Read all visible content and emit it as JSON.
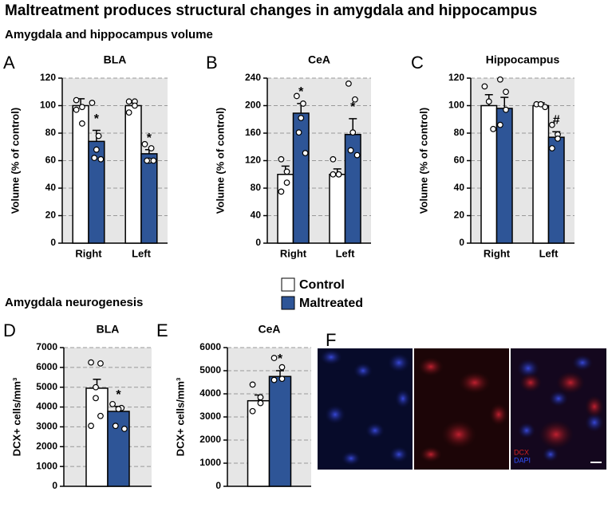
{
  "title": "Maltreatment produces structural changes in amygdala and hippocampus",
  "section_volume": "Amygdala and hippocampus volume",
  "section_neurogenesis": "Amygdala neurogenesis",
  "chart_data": [
    {
      "type": "bar",
      "panel": "A",
      "title": "BLA",
      "ylabel": "Volume (% of control)",
      "categories": [
        "Right",
        "Left"
      ],
      "ylim": [
        0,
        120
      ],
      "yticks": [
        0,
        20,
        40,
        60,
        80,
        100,
        120
      ],
      "grid": true,
      "series": [
        {
          "name": "Control",
          "color": "#ffffff",
          "values": [
            100,
            100
          ],
          "errors": [
            5,
            2
          ],
          "points": [
            [
              104,
              99,
              87,
              97
            ],
            [
              103,
              103,
              100,
              95
            ]
          ]
        },
        {
          "name": "Maltreated",
          "color": "#2e5597",
          "values": [
            74,
            65
          ],
          "errors": [
            8,
            3
          ],
          "points": [
            [
              102,
              78,
              68,
              62,
              61
            ],
            [
              72,
              69,
              60,
              60,
              60
            ]
          ],
          "significance": [
            "*",
            "*"
          ]
        }
      ]
    },
    {
      "type": "bar",
      "panel": "B",
      "title": "CeA",
      "ylabel": "Volume (% of control)",
      "categories": [
        "Right",
        "Left"
      ],
      "ylim": [
        0,
        240
      ],
      "yticks": [
        0,
        40,
        80,
        120,
        160,
        200,
        240
      ],
      "grid": true,
      "series": [
        {
          "name": "Control",
          "color": "#ffffff",
          "values": [
            100,
            100
          ],
          "errors": [
            12,
            8
          ],
          "points": [
            [
              122,
              104,
              88,
              75
            ],
            [
              122,
              100,
              100,
              100
            ]
          ]
        },
        {
          "name": "Maltreated",
          "color": "#2e5597",
          "values": [
            189,
            158
          ],
          "errors": [
            14,
            23
          ],
          "points": [
            [
              214,
              203,
              182,
              161,
              131
            ],
            [
              232,
              209,
              161,
              135,
              128
            ]
          ],
          "significance": [
            "*",
            "*"
          ]
        }
      ]
    },
    {
      "type": "bar",
      "panel": "C",
      "title": "Hippocampus",
      "ylabel": "Volume (% of control)",
      "categories": [
        "Right",
        "Left"
      ],
      "ylim": [
        0,
        120
      ],
      "yticks": [
        0,
        20,
        40,
        60,
        80,
        100,
        120
      ],
      "grid": true,
      "series": [
        {
          "name": "Control",
          "color": "#ffffff",
          "values": [
            100,
            100
          ],
          "errors": [
            8,
            2
          ],
          "points": [
            [
              114,
              103,
              83
            ],
            [
              101,
              101,
              99
            ]
          ]
        },
        {
          "name": "Maltreated",
          "color": "#2e5597",
          "values": [
            98,
            77
          ],
          "errors": [
            8,
            4
          ],
          "points": [
            [
              119,
              110,
              97,
              86
            ],
            [
              86,
              79,
              76,
              69
            ]
          ],
          "significance": [
            null,
            "#"
          ]
        }
      ]
    },
    {
      "type": "bar",
      "panel": "D",
      "title": "BLA",
      "ylabel": "DCX+ cells/mm³",
      "categories": [
        null
      ],
      "ylim": [
        0,
        7000
      ],
      "yticks": [
        0,
        1000,
        2000,
        3000,
        4000,
        5000,
        6000,
        7000
      ],
      "grid": true,
      "series": [
        {
          "name": "Control",
          "color": "#ffffff",
          "values": [
            4950
          ],
          "errors": [
            450
          ],
          "points": [
            [
              6250,
              6200,
              5000,
              4450,
              3550,
              3050
            ]
          ]
        },
        {
          "name": "Maltreated",
          "color": "#2e5597",
          "values": [
            3780
          ],
          "errors": [
            250
          ],
          "points": [
            [
              4150,
              3950,
              3900,
              3050,
              2900
            ]
          ],
          "significance": [
            "*"
          ]
        }
      ]
    },
    {
      "type": "bar",
      "panel": "E",
      "title": "CeA",
      "ylabel": "DCX+ cells/mm³",
      "categories": [
        null
      ],
      "ylim": [
        0,
        6000
      ],
      "yticks": [
        0,
        1000,
        2000,
        3000,
        4000,
        5000,
        6000
      ],
      "grid": true,
      "series": [
        {
          "name": "Control",
          "color": "#ffffff",
          "values": [
            3700
          ],
          "errors": [
            250
          ],
          "points": [
            [
              4400,
              3850,
              3600,
              3250
            ]
          ]
        },
        {
          "name": "Maltreated",
          "color": "#2e5597",
          "values": [
            4750
          ],
          "errors": [
            250
          ],
          "points": [
            [
              5550,
              5150,
              4650,
              4600
            ]
          ],
          "significance": [
            "*"
          ]
        }
      ]
    }
  ],
  "image_panel": {
    "panel": "F",
    "labels": [
      "DCX",
      "DAPI"
    ]
  }
}
